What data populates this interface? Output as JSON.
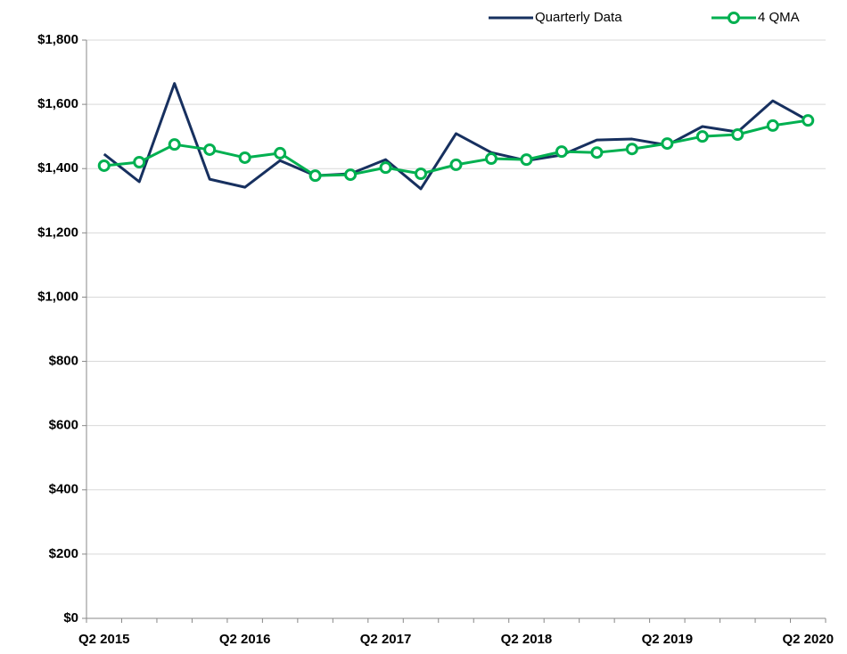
{
  "chart_data": {
    "type": "line",
    "categories": [
      "Q2 2015",
      null,
      null,
      null,
      "Q2 2016",
      null,
      null,
      null,
      "Q2 2017",
      null,
      null,
      null,
      "Q2 2018",
      null,
      null,
      null,
      "Q2 2019",
      null,
      null,
      null,
      "Q2 2020"
    ],
    "series": [
      {
        "name": "Quarterly Data",
        "color": "#17305f",
        "marker": false,
        "values": [
          1445,
          1359,
          1665,
          1367,
          1342,
          1425,
          1378,
          1384,
          1428,
          1337,
          1509,
          1450,
          1425,
          1442,
          1489,
          1492,
          1473,
          1531,
          1514,
          1611,
          1550
        ]
      },
      {
        "name": "4 QMA",
        "color": "#00b050",
        "marker": true,
        "values": [
          1409,
          1420,
          1475,
          1459,
          1434,
          1448,
          1378,
          1381,
          1403,
          1384,
          1412,
          1431,
          1428,
          1453,
          1450,
          1461,
          1478,
          1500,
          1506,
          1534,
          1550
        ]
      }
    ],
    "ylim": [
      0,
      1800
    ],
    "yticks": [
      {
        "value": 0,
        "label": "$0"
      },
      {
        "value": 200,
        "label": "$200"
      },
      {
        "value": 400,
        "label": "$400"
      },
      {
        "value": 600,
        "label": "$600"
      },
      {
        "value": 800,
        "label": "$800"
      },
      {
        "value": 1000,
        "label": "$1,000"
      },
      {
        "value": 1200,
        "label": "$1,200"
      },
      {
        "value": 1400,
        "label": "$1,400"
      },
      {
        "value": 1600,
        "label": "$1,600"
      },
      {
        "value": 1800,
        "label": "$1,800"
      }
    ],
    "grid": true,
    "legend": "top-right"
  }
}
